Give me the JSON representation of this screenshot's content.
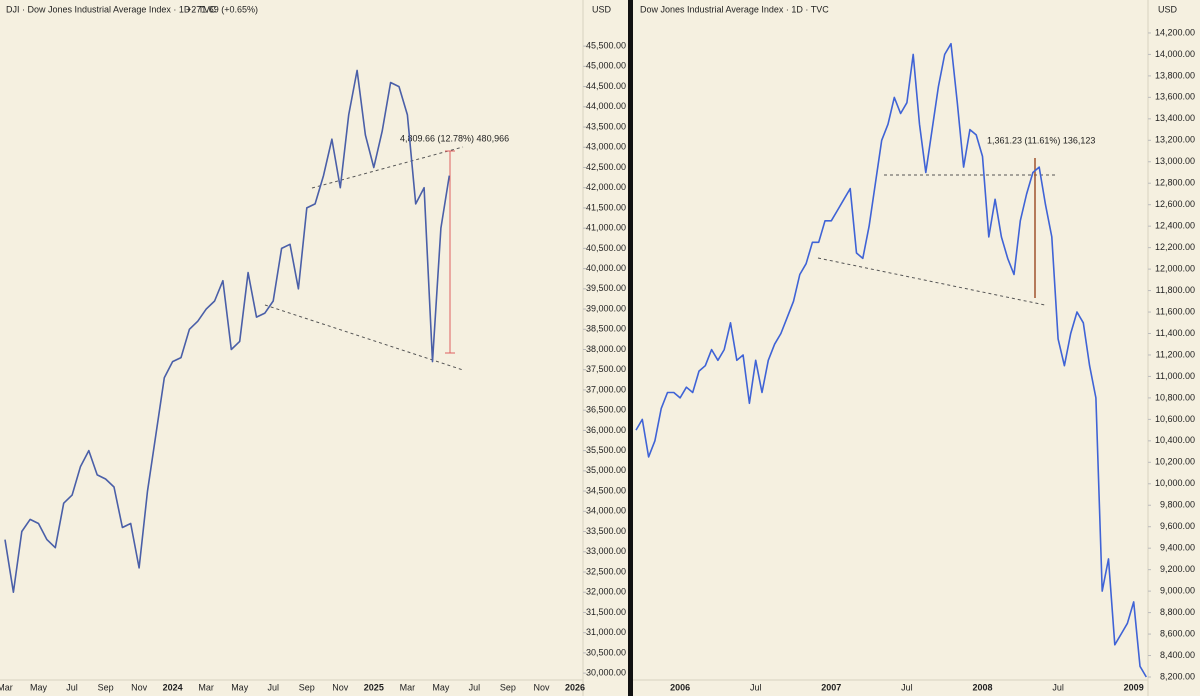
{
  "chart_data": [
    {
      "type": "line",
      "title": "DJI · Dow Jones Industrial Average Index · 1D · TVC",
      "subtitle": "+271.69 (+0.65%)",
      "ylabel": "USD",
      "annotation": "4,809.66 (12.78%) 480,966",
      "color": "#4a5fa8",
      "categories": [
        "Mar",
        null,
        null,
        null,
        "May",
        null,
        null,
        null,
        "Jul",
        null,
        null,
        null,
        "Sep",
        null,
        null,
        null,
        "Nov",
        null,
        null,
        null,
        "2024",
        null,
        null,
        null,
        "Mar",
        null,
        null,
        null,
        "May",
        null,
        null,
        null,
        "Jul",
        null,
        null,
        null,
        "Sep",
        null,
        null,
        null,
        "Nov",
        null,
        null,
        null,
        "2025",
        null,
        null,
        null,
        "Mar",
        null,
        null,
        null,
        "May",
        null,
        null,
        null,
        "Jul",
        null,
        null,
        null,
        "Sep",
        null,
        null,
        null,
        "Nov",
        null,
        null,
        null,
        "2026"
      ],
      "values": [
        33300,
        32000,
        33500,
        33800,
        33700,
        33300,
        33100,
        34200,
        34400,
        35100,
        35500,
        34900,
        34800,
        34600,
        33600,
        33700,
        32600,
        34500,
        35900,
        37300,
        37700,
        37800,
        38500,
        38700,
        39000,
        39200,
        39700,
        38000,
        38200,
        39900,
        38800,
        38900,
        39200,
        40500,
        40600,
        39500,
        41500,
        41600,
        42300,
        43200,
        42000,
        43800,
        44900,
        43300,
        42500,
        43400,
        44600,
        44500,
        43800,
        41600,
        42000,
        37700,
        41000,
        42300,
        null,
        null,
        null,
        null,
        null,
        null,
        null,
        null,
        null,
        null,
        null,
        null,
        null,
        null,
        null
      ],
      "ylim": [
        29830,
        46640
      ],
      "yticks": [
        {
          "value": 30000,
          "label": "30,000.00"
        },
        {
          "value": 30500,
          "label": "30,500.00"
        },
        {
          "value": 31000,
          "label": "31,000.00"
        },
        {
          "value": 31500,
          "label": "31,500.00"
        },
        {
          "value": 32000,
          "label": "32,000.00"
        },
        {
          "value": 32500,
          "label": "32,500.00"
        },
        {
          "value": 33000,
          "label": "33,000.00"
        },
        {
          "value": 33500,
          "label": "33,500.00"
        },
        {
          "value": 34000,
          "label": "34,000.00"
        },
        {
          "value": 34500,
          "label": "34,500.00"
        },
        {
          "value": 35000,
          "label": "35,000.00"
        },
        {
          "value": 35500,
          "label": "35,500.00"
        },
        {
          "value": 36000,
          "label": "36,000.00"
        },
        {
          "value": 36500,
          "label": "36,500.00"
        },
        {
          "value": 37000,
          "label": "37,000.00"
        },
        {
          "value": 37500,
          "label": "37,500.00"
        },
        {
          "value": 38000,
          "label": "38,000.00"
        },
        {
          "value": 38500,
          "label": "38,500.00"
        },
        {
          "value": 39000,
          "label": "39,000.00"
        },
        {
          "value": 39500,
          "label": "39,500.00"
        },
        {
          "value": 40000,
          "label": "40,000.00"
        },
        {
          "value": 40500,
          "label": "40,500.00"
        },
        {
          "value": 41000,
          "label": "41,000.00"
        },
        {
          "value": 41500,
          "label": "41,500.00"
        },
        {
          "value": 42000,
          "label": "42,000.00"
        },
        {
          "value": 42500,
          "label": "42,500.00"
        },
        {
          "value": 43000,
          "label": "43,000.00"
        },
        {
          "value": 43500,
          "label": "43,500.00"
        },
        {
          "value": 44000,
          "label": "44,000.00"
        },
        {
          "value": 44500,
          "label": "44,500.00"
        },
        {
          "value": 45000,
          "label": "45,000.00"
        },
        {
          "value": 45500,
          "label": "45,500.00"
        }
      ]
    },
    {
      "type": "line",
      "title": "Dow Jones Industrial Average Index · 1D · TVC",
      "ylabel": "USD",
      "annotation": "1,361.23 (11.61%) 136,123",
      "color": "#3f63d6",
      "categories": [
        null,
        null,
        null,
        null,
        null,
        null,
        null,
        "2006",
        null,
        null,
        null,
        null,
        null,
        null,
        null,
        null,
        null,
        null,
        null,
        "Jul",
        null,
        null,
        null,
        null,
        null,
        null,
        null,
        null,
        null,
        null,
        null,
        "2007",
        null,
        null,
        null,
        null,
        null,
        null,
        null,
        null,
        null,
        null,
        null,
        "Jul",
        null,
        null,
        null,
        null,
        null,
        null,
        null,
        null,
        null,
        null,
        null,
        "2008",
        null,
        null,
        null,
        null,
        null,
        null,
        null,
        null,
        null,
        null,
        null,
        "Jul",
        null,
        null,
        null,
        null,
        null,
        null,
        null,
        null,
        null,
        null,
        null,
        "2009",
        null,
        null
      ],
      "values": [
        10500,
        10600,
        10250,
        10400,
        10700,
        10850,
        10850,
        10800,
        10900,
        10850,
        11050,
        11100,
        11250,
        11150,
        11250,
        11500,
        11150,
        11200,
        10750,
        11150,
        10850,
        11150,
        11300,
        11400,
        11550,
        11700,
        11950,
        12050,
        12250,
        12250,
        12450,
        12450,
        12550,
        12650,
        12750,
        12150,
        12100,
        12400,
        12800,
        13200,
        13350,
        13600,
        13450,
        13550,
        14000,
        13350,
        12900,
        13300,
        13700,
        14000,
        14100,
        13550,
        12950,
        13300,
        13250,
        13050,
        12300,
        12650,
        12300,
        12100,
        11950,
        12450,
        12700,
        12900,
        12950,
        12600,
        12300,
        11350,
        11100,
        11400,
        11600,
        11500,
        11100,
        10800,
        9000,
        9300,
        8500,
        8600,
        8700,
        8900,
        8300,
        8200
      ],
      "ylim": [
        8172,
        14507
      ],
      "yticks": [
        {
          "value": 8200,
          "label": "8,200.00"
        },
        {
          "value": 8400,
          "label": "8,400.00"
        },
        {
          "value": 8600,
          "label": "8,600.00"
        },
        {
          "value": 8800,
          "label": "8,800.00"
        },
        {
          "value": 9000,
          "label": "9,000.00"
        },
        {
          "value": 9200,
          "label": "9,200.00"
        },
        {
          "value": 9400,
          "label": "9,400.00"
        },
        {
          "value": 9600,
          "label": "9,600.00"
        },
        {
          "value": 9800,
          "label": "9,800.00"
        },
        {
          "value": 10000,
          "label": "10,000.00"
        },
        {
          "value": 10200,
          "label": "10,200.00"
        },
        {
          "value": 10400,
          "label": "10,400.00"
        },
        {
          "value": 10600,
          "label": "10,600.00"
        },
        {
          "value": 10800,
          "label": "10,800.00"
        },
        {
          "value": 11000,
          "label": "11,000.00"
        },
        {
          "value": 11200,
          "label": "11,200.00"
        },
        {
          "value": 11400,
          "label": "11,400.00"
        },
        {
          "value": 11600,
          "label": "11,600.00"
        },
        {
          "value": 11800,
          "label": "11,800.00"
        },
        {
          "value": 12000,
          "label": "12,000.00"
        },
        {
          "value": 12200,
          "label": "12,200.00"
        },
        {
          "value": 12400,
          "label": "12,400.00"
        },
        {
          "value": 12600,
          "label": "12,600.00"
        },
        {
          "value": 12800,
          "label": "12,800.00"
        },
        {
          "value": 13000,
          "label": "13,000.00"
        },
        {
          "value": 13200,
          "label": "13,200.00"
        },
        {
          "value": 13400,
          "label": "13,400.00"
        },
        {
          "value": 13600,
          "label": "13,600.00"
        },
        {
          "value": 13800,
          "label": "13,800.00"
        },
        {
          "value": 14000,
          "label": "14,000.00"
        },
        {
          "value": 14200,
          "label": "14,200.00"
        }
      ]
    }
  ]
}
